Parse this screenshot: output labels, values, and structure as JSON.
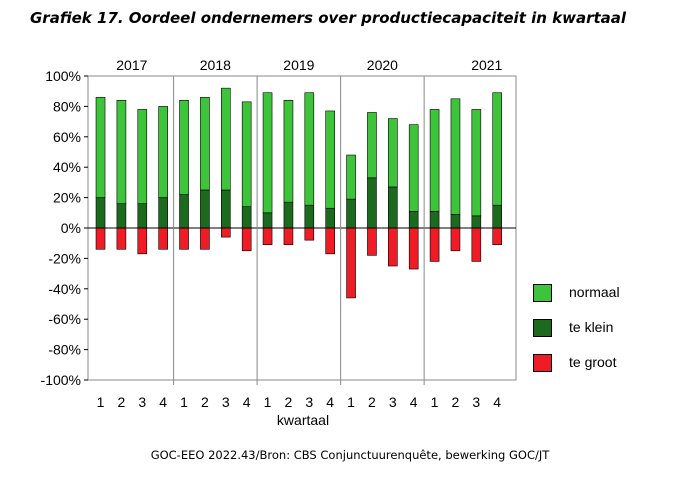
{
  "title": "Grafiek 17. Oordeel ondernemers over productiecapaciteit in kwartaal",
  "source": "GOC-EEO 2022.43/Bron: CBS Conjunctuurenquête, bewerking GOC/JT",
  "colors": {
    "normaal": "#3ec43a",
    "te_klein": "#1c6a1e",
    "te_groot": "#ee1c25"
  },
  "legend": [
    {
      "label": "normaal",
      "color": "#3ec43a"
    },
    {
      "label": "te klein",
      "color": "#1c6a1e"
    },
    {
      "label": "te groot",
      "color": "#ee1c25"
    }
  ],
  "chart_data": {
    "type": "bar",
    "stacked": true,
    "title": "Grafiek 17. Oordeel ondernemers over productiecapaciteit in kwartaal",
    "xlabel": "kwartaal",
    "ylabel": "",
    "ylim": [
      -100,
      100
    ],
    "yticks": [
      "100%",
      "80%",
      "60%",
      "40%",
      "20%",
      "0%",
      "-20%",
      "-40%",
      "-60%",
      "-80%",
      "-100%"
    ],
    "years": [
      "2017",
      "2018",
      "2019",
      "2020",
      "2021"
    ],
    "categories": [
      "1",
      "2",
      "3",
      "4",
      "1",
      "2",
      "3",
      "4",
      "1",
      "2",
      "3",
      "4",
      "1",
      "2",
      "3",
      "4",
      "1",
      "2",
      "3",
      "4"
    ],
    "grid": false,
    "legend_position": "right",
    "series": [
      {
        "name": "te klein",
        "values": [
          20,
          16,
          16,
          20,
          22,
          25,
          25,
          14,
          10,
          17,
          15,
          13,
          19,
          33,
          27,
          11,
          11,
          9,
          8,
          15
        ]
      },
      {
        "name": "normaal",
        "values": [
          66,
          68,
          62,
          60,
          62,
          61,
          67,
          69,
          79,
          67,
          74,
          64,
          29,
          43,
          45,
          57,
          67,
          76,
          70,
          74
        ]
      },
      {
        "name": "te groot",
        "values": [
          -14,
          -14,
          -17,
          -14,
          -14,
          -14,
          -6,
          -15,
          -11,
          -11,
          -8,
          -17,
          -46,
          -18,
          -25,
          -27,
          -22,
          -15,
          -22,
          -11
        ]
      }
    ]
  }
}
